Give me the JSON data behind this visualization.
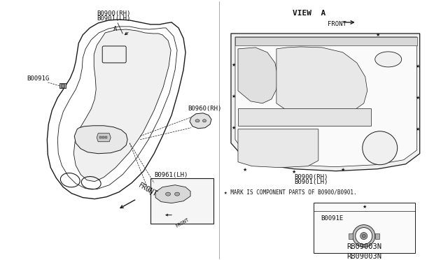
{
  "bg_color": "#ffffff",
  "line_color": "#1a1a1a",
  "text_color": "#111111",
  "labels": {
    "B0900_RH": "B0900(RH)",
    "B0901_LH": "B0901(LH)",
    "B0091G": "B0091G",
    "B0960_RH": "B0960(RH)",
    "B0961_LH": "B0961(LH)",
    "B0091E": "B0091E",
    "view_a": "VIEW  A",
    "front_arrow": "FRONT",
    "front_label": "FRONT",
    "mark_note": "★ MARK IS COMPONENT PARTS OF B0900/B0901.",
    "ref_num": "RB09003N",
    "label_A": "A"
  }
}
